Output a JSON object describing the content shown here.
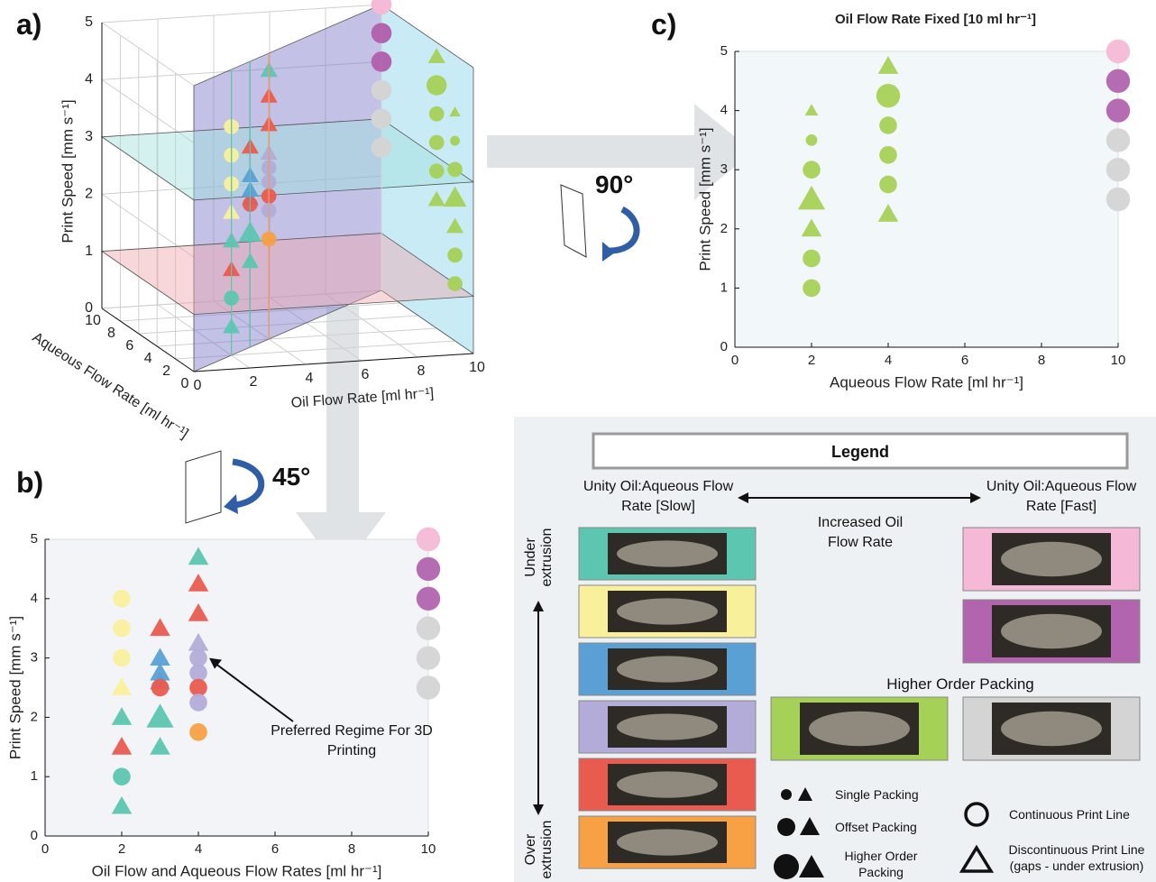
{
  "panel_labels": [
    "a)",
    "b)",
    "c)"
  ],
  "rotations": [
    "90°",
    "45°"
  ],
  "legend": {
    "title": "Legend",
    "slow": "Unity Oil:Aqueous Flow Rate [Slow]",
    "fast": "Unity Oil:Aqueous Flow Rate [Fast]",
    "increase": "Increased Oil Flow Rate",
    "under": "Under extrusion",
    "over": "Over extrusion",
    "higher_order": "Higher Order Packing",
    "packing": [
      "Single Packing",
      "Offset Packing",
      "Higher Order Packing"
    ],
    "lines": [
      "Continuous Print Line",
      "Discontinuous Print Line (gaps - under extrusion)"
    ]
  },
  "chart_data": [
    {
      "type": "scatter3d",
      "xlabel": "Oil Flow Rate [ml hr⁻¹]",
      "ylabel": "Aqueous Flow Rate [ml hr⁻¹]",
      "zlabel": "Print Speed [mm s⁻¹]",
      "xlim": [
        0,
        10
      ],
      "xticks": [
        0,
        2,
        4,
        6,
        8,
        10
      ],
      "ylim": [
        0,
        10
      ],
      "yticks": [
        0,
        2,
        4,
        6,
        8,
        10
      ],
      "zlim": [
        0,
        5
      ],
      "zticks": [
        0,
        1,
        2,
        3,
        4,
        5
      ]
    },
    {
      "type": "scatter",
      "xlabel": "Oil Flow and Aqueous Flow Rates [ml hr⁻¹]",
      "ylabel": "Print Speed [mm s⁻¹]",
      "annotation": "Preferred Regime For 3D Printing",
      "xlim": [
        0,
        10
      ],
      "xticks": [
        0,
        2,
        4,
        6,
        8,
        10
      ],
      "ylim": [
        0,
        5
      ],
      "yticks": [
        0,
        1,
        2,
        3,
        4,
        5
      ],
      "points": [
        {
          "x": 2,
          "y": 4,
          "shape": "circle",
          "size": 2,
          "color": "#f9f09c"
        },
        {
          "x": 2,
          "y": 3.5,
          "shape": "circle",
          "size": 2,
          "color": "#f9f09c"
        },
        {
          "x": 2,
          "y": 3,
          "shape": "circle",
          "size": 2,
          "color": "#f9f09c"
        },
        {
          "x": 2,
          "y": 2.5,
          "shape": "triangle",
          "size": 2,
          "color": "#f9f09c"
        },
        {
          "x": 2,
          "y": 2,
          "shape": "triangle",
          "size": 2,
          "color": "#5cc6b0"
        },
        {
          "x": 2,
          "y": 1.5,
          "shape": "triangle",
          "size": 2,
          "color": "#ea5b4f"
        },
        {
          "x": 2,
          "y": 1,
          "shape": "circle",
          "size": 2,
          "color": "#5cc6b0"
        },
        {
          "x": 2,
          "y": 0.5,
          "shape": "triangle",
          "size": 2,
          "color": "#5cc6b0"
        },
        {
          "x": 3,
          "y": 3.5,
          "shape": "triangle",
          "size": 2,
          "color": "#ea5b4f"
        },
        {
          "x": 3,
          "y": 3,
          "shape": "triangle",
          "size": 2,
          "color": "#5aa0d5"
        },
        {
          "x": 3,
          "y": 2.75,
          "shape": "triangle",
          "size": 2,
          "color": "#5aa0d5"
        },
        {
          "x": 3,
          "y": 2.6,
          "shape": "triangle",
          "size": 2,
          "color": "#5aa0d5"
        },
        {
          "x": 3,
          "y": 2.5,
          "shape": "circle",
          "size": 2,
          "color": "#ea5b4f"
        },
        {
          "x": 3,
          "y": 2,
          "shape": "triangle",
          "size": 3,
          "color": "#5cc6b0"
        },
        {
          "x": 3,
          "y": 1.5,
          "shape": "triangle",
          "size": 2,
          "color": "#5cc6b0"
        },
        {
          "x": 4,
          "y": 4.7,
          "shape": "triangle",
          "size": 2,
          "color": "#5cc6b0"
        },
        {
          "x": 4,
          "y": 4.25,
          "shape": "triangle",
          "size": 2,
          "color": "#ea5b4f"
        },
        {
          "x": 4,
          "y": 3.75,
          "shape": "triangle",
          "size": 2,
          "color": "#ea5b4f"
        },
        {
          "x": 4,
          "y": 3.25,
          "shape": "triangle",
          "size": 2,
          "color": "#b3acd8"
        },
        {
          "x": 4,
          "y": 3,
          "shape": "circle",
          "size": 2,
          "color": "#b3acd8"
        },
        {
          "x": 4,
          "y": 2.75,
          "shape": "circle",
          "size": 2,
          "color": "#b3acd8"
        },
        {
          "x": 4,
          "y": 2.5,
          "shape": "circle",
          "size": 2,
          "color": "#ea5b4f"
        },
        {
          "x": 4,
          "y": 2.25,
          "shape": "circle",
          "size": 2,
          "color": "#b3acd8"
        },
        {
          "x": 4,
          "y": 1.75,
          "shape": "circle",
          "size": 2,
          "color": "#f7a044"
        },
        {
          "x": 10,
          "y": 5,
          "shape": "circle",
          "size": 3,
          "color": "#f5b9d7"
        },
        {
          "x": 10,
          "y": 4.5,
          "shape": "circle",
          "size": 3,
          "color": "#b264ae"
        },
        {
          "x": 10,
          "y": 4,
          "shape": "circle",
          "size": 3,
          "color": "#b264ae"
        },
        {
          "x": 10,
          "y": 3.5,
          "shape": "circle",
          "size": 3,
          "color": "#d4d4d4"
        },
        {
          "x": 10,
          "y": 3,
          "shape": "circle",
          "size": 3,
          "color": "#d4d4d4"
        },
        {
          "x": 10,
          "y": 2.5,
          "shape": "circle",
          "size": 3,
          "color": "#d4d4d4"
        }
      ]
    },
    {
      "type": "scatter",
      "title": "Oil Flow Rate Fixed [10 ml hr⁻¹]",
      "xlabel": "Aqueous Flow Rate [ml hr⁻¹]",
      "ylabel": "Print Speed [mm s⁻¹]",
      "xlim": [
        0,
        10
      ],
      "xticks": [
        0,
        2,
        4,
        6,
        8,
        10
      ],
      "ylim": [
        0,
        5
      ],
      "yticks": [
        0,
        1,
        2,
        3,
        4,
        5
      ],
      "points": [
        {
          "x": 2,
          "y": 4,
          "shape": "triangle",
          "size": 1,
          "color": "#a6d157"
        },
        {
          "x": 2,
          "y": 3.5,
          "shape": "circle",
          "size": 1,
          "color": "#a6d157"
        },
        {
          "x": 2,
          "y": 3,
          "shape": "circle",
          "size": 2,
          "color": "#a6d157"
        },
        {
          "x": 2,
          "y": 2.5,
          "shape": "triangle",
          "size": 3,
          "color": "#a6d157"
        },
        {
          "x": 2,
          "y": 2,
          "shape": "triangle",
          "size": 2,
          "color": "#a6d157"
        },
        {
          "x": 2,
          "y": 1.5,
          "shape": "circle",
          "size": 2,
          "color": "#a6d157"
        },
        {
          "x": 2,
          "y": 1,
          "shape": "circle",
          "size": 2,
          "color": "#a6d157"
        },
        {
          "x": 4,
          "y": 4.75,
          "shape": "triangle",
          "size": 2,
          "color": "#a6d157"
        },
        {
          "x": 4,
          "y": 4.25,
          "shape": "circle",
          "size": 3,
          "color": "#a6d157"
        },
        {
          "x": 4,
          "y": 3.75,
          "shape": "circle",
          "size": 2,
          "color": "#a6d157"
        },
        {
          "x": 4,
          "y": 3.25,
          "shape": "circle",
          "size": 2,
          "color": "#a6d157"
        },
        {
          "x": 4,
          "y": 2.75,
          "shape": "circle",
          "size": 2,
          "color": "#a6d157"
        },
        {
          "x": 4,
          "y": 2.25,
          "shape": "triangle",
          "size": 2,
          "color": "#a6d157"
        },
        {
          "x": 10,
          "y": 5,
          "shape": "circle",
          "size": 3,
          "color": "#f5b9d7"
        },
        {
          "x": 10,
          "y": 4.5,
          "shape": "circle",
          "size": 3,
          "color": "#b264ae"
        },
        {
          "x": 10,
          "y": 4,
          "shape": "circle",
          "size": 3,
          "color": "#b264ae"
        },
        {
          "x": 10,
          "y": 3.5,
          "shape": "circle",
          "size": 3,
          "color": "#d4d4d4"
        },
        {
          "x": 10,
          "y": 3,
          "shape": "circle",
          "size": 3,
          "color": "#d4d4d4"
        },
        {
          "x": 10,
          "y": 2.5,
          "shape": "circle",
          "size": 3,
          "color": "#d4d4d4"
        }
      ]
    }
  ]
}
